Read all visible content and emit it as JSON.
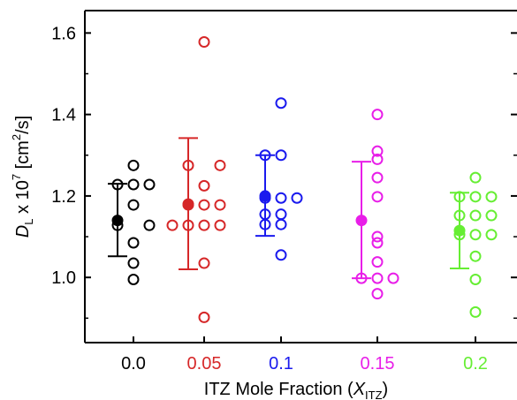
{
  "chart_data": {
    "type": "scatter",
    "xlabel": {
      "main": "ITZ Mole Fraction (",
      "var": "X",
      "sub": "ITZ",
      "close": ")"
    },
    "ylabel": {
      "var": "D",
      "sub": "L",
      "mid": " x 10",
      "sup": "7",
      "unit": "  [cm",
      "unit_sup": "2",
      "unit_end": "/s]"
    },
    "ylim": [
      0.84,
      1.655
    ],
    "yticks": [
      1.0,
      1.2,
      1.4,
      1.6
    ],
    "ytick_labels": [
      "1.0",
      "1.2",
      "1.4",
      "1.6"
    ],
    "grid": false,
    "legend": "none",
    "series": [
      {
        "category": "0.0",
        "color": "#000000",
        "points": [
          {
            "x": 0,
            "y": 1.275
          },
          {
            "x": -1,
            "y": 1.228
          },
          {
            "x": 0,
            "y": 1.228
          },
          {
            "x": 1,
            "y": 1.228
          },
          {
            "x": 0,
            "y": 1.178
          },
          {
            "x": -1,
            "y": 1.128
          },
          {
            "x": 1,
            "y": 1.128
          },
          {
            "x": 0,
            "y": 1.085
          },
          {
            "x": 0,
            "y": 1.035
          },
          {
            "x": 0,
            "y": 0.995
          }
        ],
        "mean": 1.14,
        "err_low": 1.052,
        "err_high": 1.23
      },
      {
        "category": "0.05",
        "color": "#d62728",
        "points": [
          {
            "x": 0,
            "y": 1.578
          },
          {
            "x": -1,
            "y": 1.275
          },
          {
            "x": 1,
            "y": 1.275
          },
          {
            "x": 0,
            "y": 1.225
          },
          {
            "x": -1,
            "y": 1.178
          },
          {
            "x": 0,
            "y": 1.178
          },
          {
            "x": 1,
            "y": 1.178
          },
          {
            "x": -2,
            "y": 1.128
          },
          {
            "x": -1,
            "y": 1.128
          },
          {
            "x": 0,
            "y": 1.128
          },
          {
            "x": 1,
            "y": 1.128
          },
          {
            "x": 0,
            "y": 1.035
          },
          {
            "x": 0,
            "y": 0.902
          }
        ],
        "mean": 1.18,
        "err_low": 1.02,
        "err_high": 1.342
      },
      {
        "category": "0.1",
        "color": "#1a1aee",
        "points": [
          {
            "x": 0,
            "y": 1.428
          },
          {
            "x": -1,
            "y": 1.3
          },
          {
            "x": 0,
            "y": 1.3
          },
          {
            "x": -1,
            "y": 1.195
          },
          {
            "x": 0,
            "y": 1.195
          },
          {
            "x": 1,
            "y": 1.195
          },
          {
            "x": -1,
            "y": 1.155
          },
          {
            "x": 0,
            "y": 1.155
          },
          {
            "x": -1,
            "y": 1.13
          },
          {
            "x": 0,
            "y": 1.13
          },
          {
            "x": 0,
            "y": 1.055
          }
        ],
        "mean": 1.2,
        "err_low": 1.102,
        "err_high": 1.3
      },
      {
        "category": "0.15",
        "color": "#e81ee8",
        "points": [
          {
            "x": 0,
            "y": 1.4
          },
          {
            "x": 0,
            "y": 1.31
          },
          {
            "x": 0,
            "y": 1.29
          },
          {
            "x": 0,
            "y": 1.245
          },
          {
            "x": 0,
            "y": 1.198
          },
          {
            "x": 0,
            "y": 1.1
          },
          {
            "x": 0,
            "y": 1.085
          },
          {
            "x": 0,
            "y": 1.038
          },
          {
            "x": -1,
            "y": 0.998
          },
          {
            "x": 0,
            "y": 0.998
          },
          {
            "x": 1,
            "y": 0.998
          },
          {
            "x": 0,
            "y": 0.96
          }
        ],
        "mean": 1.14,
        "err_low": 0.998,
        "err_high": 1.284
      },
      {
        "category": "0.2",
        "color": "#66ee33",
        "points": [
          {
            "x": 0,
            "y": 1.245
          },
          {
            "x": -1,
            "y": 1.198
          },
          {
            "x": 0,
            "y": 1.198
          },
          {
            "x": 1,
            "y": 1.198
          },
          {
            "x": -1,
            "y": 1.152
          },
          {
            "x": 0,
            "y": 1.152
          },
          {
            "x": 1,
            "y": 1.152
          },
          {
            "x": -1,
            "y": 1.105
          },
          {
            "x": 0,
            "y": 1.105
          },
          {
            "x": 1,
            "y": 1.105
          },
          {
            "x": 0,
            "y": 1.052
          },
          {
            "x": 0,
            "y": 0.995
          },
          {
            "x": 0,
            "y": 0.915
          }
        ],
        "mean": 1.115,
        "err_low": 1.022,
        "err_high": 1.208
      }
    ]
  }
}
